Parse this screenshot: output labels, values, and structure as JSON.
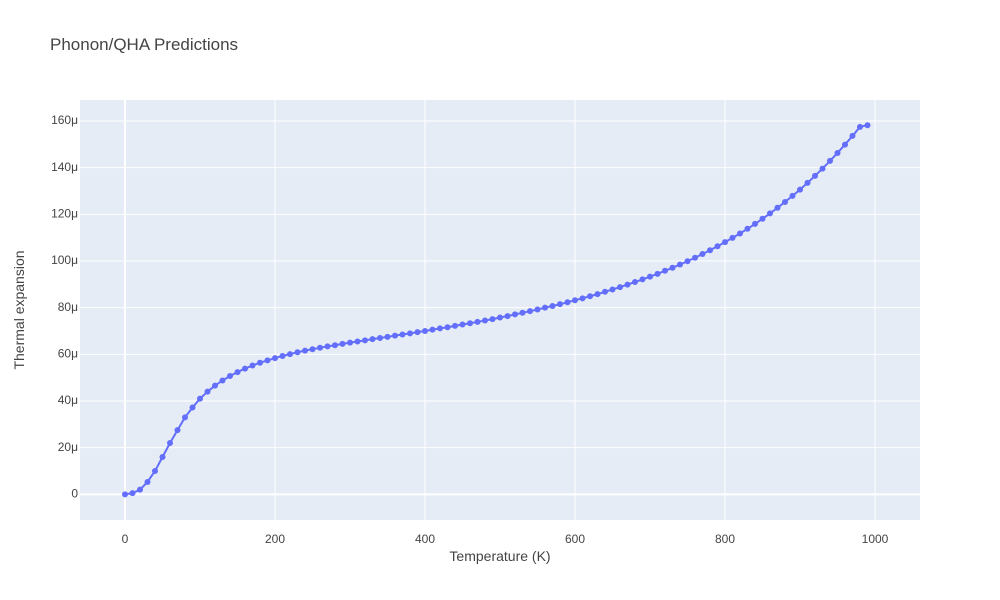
{
  "chart_data": {
    "type": "line",
    "title": "Phonon/QHA Predictions",
    "xlabel": "Temperature (K)",
    "ylabel": "Thermal expansion",
    "xlim": [
      -60,
      1060
    ],
    "ylim": [
      -1.1e-05,
      0.000169
    ],
    "x_ticks": [
      0,
      200,
      400,
      600,
      800,
      1000
    ],
    "x_tick_labels": [
      "0",
      "200",
      "400",
      "600",
      "800",
      "1000"
    ],
    "y_ticks": [
      0,
      2e-05,
      4e-05,
      6e-05,
      8e-05,
      0.0001,
      0.00012,
      0.00014,
      0.00016
    ],
    "y_tick_labels": [
      "0",
      "20μ",
      "40μ",
      "60μ",
      "80μ",
      "100μ",
      "120μ",
      "140μ",
      "160μ"
    ],
    "grid": true,
    "legend": false,
    "colors": {
      "series": "#636efa",
      "plot_bg": "#e5ecf6",
      "grid": "#ffffff",
      "text": "#444444"
    },
    "series": [
      {
        "x": [
          0,
          10,
          20,
          30,
          40,
          50,
          60,
          70,
          80,
          90,
          100,
          110,
          120,
          130,
          140,
          150,
          160,
          170,
          180,
          190,
          200,
          210,
          220,
          230,
          240,
          250,
          260,
          270,
          280,
          290,
          300,
          310,
          320,
          330,
          340,
          350,
          360,
          370,
          380,
          390,
          400,
          410,
          420,
          430,
          440,
          450,
          460,
          470,
          480,
          490,
          500,
          510,
          520,
          530,
          540,
          550,
          560,
          570,
          580,
          590,
          600,
          610,
          620,
          630,
          640,
          650,
          660,
          670,
          680,
          690,
          700,
          710,
          720,
          730,
          740,
          750,
          760,
          770,
          780,
          790,
          800,
          810,
          820,
          830,
          840,
          850,
          860,
          870,
          880,
          890,
          900,
          910,
          920,
          930,
          940,
          950,
          960,
          970,
          980,
          990
        ],
        "values": [
          0,
          5e-07,
          2e-06,
          5.3e-06,
          1e-05,
          1.6e-05,
          2.2e-05,
          2.75e-05,
          3.3e-05,
          3.72e-05,
          4.1e-05,
          4.4e-05,
          4.66e-05,
          4.88e-05,
          5.07e-05,
          5.24e-05,
          5.39e-05,
          5.52e-05,
          5.64e-05,
          5.74e-05,
          5.84e-05,
          5.93e-05,
          6.01e-05,
          6.09e-05,
          6.16e-05,
          6.22e-05,
          6.28e-05,
          6.34e-05,
          6.39e-05,
          6.45e-05,
          6.5e-05,
          6.55e-05,
          6.6e-05,
          6.65e-05,
          6.7e-05,
          6.75e-05,
          6.8e-05,
          6.85e-05,
          6.9e-05,
          6.95e-05,
          7e-05,
          7.06e-05,
          7.11e-05,
          7.16e-05,
          7.22e-05,
          7.28e-05,
          7.33e-05,
          7.39e-05,
          7.45e-05,
          7.51e-05,
          7.58e-05,
          7.64e-05,
          7.71e-05,
          7.78e-05,
          7.85e-05,
          7.92e-05,
          8e-05,
          8.07e-05,
          8.15e-05,
          8.23e-05,
          8.32e-05,
          8.4e-05,
          8.49e-05,
          8.58e-05,
          8.68e-05,
          8.78e-05,
          8.88e-05,
          8.99e-05,
          9.1e-05,
          9.21e-05,
          9.33e-05,
          9.45e-05,
          9.58e-05,
          9.71e-05,
          9.85e-05,
          9.99e-05,
          0.0001014,
          0.000103,
          0.0001046,
          0.0001063,
          0.0001081,
          0.0001099,
          0.0001118,
          0.0001138,
          0.0001159,
          0.0001181,
          0.0001204,
          0.0001228,
          0.0001253,
          0.0001279,
          0.0001306,
          0.0001335,
          0.0001365,
          0.0001396,
          0.0001429,
          0.0001463,
          0.0001499,
          0.0001536,
          0.0001575,
          0.0001582
        ]
      }
    ]
  }
}
